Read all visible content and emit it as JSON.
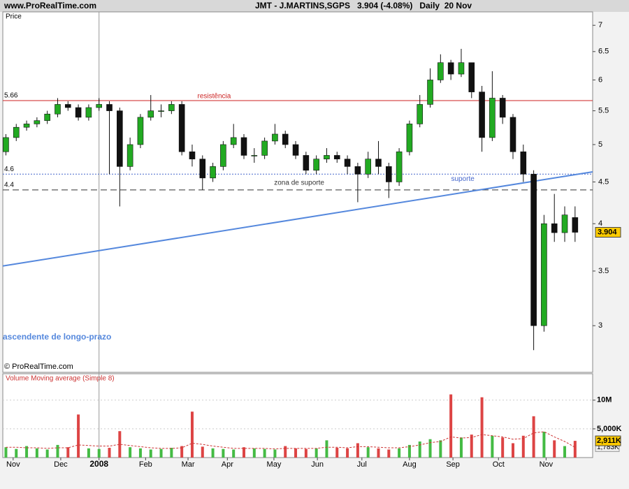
{
  "site": "www.ProRealTime.com",
  "copyright": "© ProRealTime.com",
  "chart_data": [
    {
      "type": "candlestick",
      "title": "JMT - J.MARTINS,SGPS   3.904 (-4.08%)   Daily  20 Nov",
      "axis_label": "Price",
      "log_scale": true,
      "up_color": "#22aa22",
      "down_color": "#111111",
      "ylim": [
        2.63,
        7.27
      ],
      "yticks": [
        3,
        3.5,
        4,
        4.5,
        5,
        5.5,
        6,
        6.5,
        7
      ],
      "xlim": [
        -0.3,
        56.7
      ],
      "xticks": [
        {
          "value": 0.7,
          "label": "Nov"
        },
        {
          "value": 5.3,
          "label": "Dec"
        },
        {
          "value": 9,
          "label": "2008"
        },
        {
          "value": 13.5,
          "label": "Feb"
        },
        {
          "value": 17.6,
          "label": "Mar"
        },
        {
          "value": 21.4,
          "label": "Apr"
        },
        {
          "value": 25.9,
          "label": "May"
        },
        {
          "value": 30.1,
          "label": "Jun"
        },
        {
          "value": 34.4,
          "label": "Jul"
        },
        {
          "value": 39,
          "label": "Aug"
        },
        {
          "value": 43.2,
          "label": "Sep"
        },
        {
          "value": 47.6,
          "label": "Oct"
        },
        {
          "value": 52.2,
          "label": "Nov"
        }
      ],
      "open": [
        4.9,
        5.1,
        5.25,
        5.3,
        5.35,
        5.45,
        5.6,
        5.55,
        5.4,
        5.55,
        5.6,
        5.5,
        4.7,
        5.0,
        5.4,
        5.5,
        5.5,
        5.6,
        4.9,
        4.8,
        4.55,
        4.7,
        5.0,
        5.1,
        4.85,
        4.85,
        5.05,
        5.15,
        5.0,
        4.85,
        4.65,
        4.8,
        4.85,
        4.8,
        4.7,
        4.6,
        4.8,
        4.7,
        4.5,
        4.9,
        5.3,
        5.6,
        6.0,
        6.3,
        6.1,
        6.3,
        5.8,
        5.1,
        5.7,
        5.4,
        4.9,
        4.6,
        3.0,
        4.0,
        3.9,
        4.07
      ],
      "high": [
        5.15,
        5.3,
        5.35,
        5.4,
        5.5,
        5.7,
        5.65,
        5.6,
        5.6,
        5.7,
        5.65,
        5.55,
        5.1,
        5.45,
        5.75,
        5.6,
        5.65,
        5.65,
        5.0,
        4.85,
        4.75,
        5.05,
        5.3,
        5.15,
        4.95,
        5.1,
        5.3,
        5.2,
        5.05,
        4.9,
        4.85,
        4.95,
        4.9,
        4.85,
        4.75,
        4.9,
        5.05,
        4.75,
        4.95,
        5.35,
        5.75,
        6.2,
        6.45,
        6.35,
        6.55,
        6.3,
        5.9,
        6.15,
        5.75,
        5.45,
        5.0,
        4.65,
        4.1,
        4.35,
        4.2,
        4.2
      ],
      "low": [
        4.85,
        5.05,
        5.2,
        5.25,
        5.3,
        5.4,
        5.5,
        5.35,
        5.35,
        5.5,
        4.6,
        4.2,
        4.65,
        4.95,
        5.35,
        5.4,
        5.45,
        4.85,
        4.7,
        4.4,
        4.5,
        4.65,
        4.95,
        4.8,
        4.75,
        4.8,
        5.0,
        4.95,
        4.8,
        4.6,
        4.6,
        4.75,
        4.75,
        4.6,
        4.25,
        4.55,
        4.6,
        4.3,
        4.45,
        4.85,
        5.25,
        5.55,
        5.95,
        6.0,
        6.05,
        5.7,
        4.9,
        5.05,
        5.3,
        4.8,
        4.5,
        2.8,
        2.95,
        3.8,
        3.8,
        3.8
      ],
      "close": [
        5.1,
        5.25,
        5.3,
        5.35,
        5.45,
        5.6,
        5.55,
        5.4,
        5.55,
        5.6,
        5.5,
        4.7,
        5.0,
        5.4,
        5.5,
        5.5,
        5.6,
        4.9,
        4.8,
        4.55,
        4.7,
        5.0,
        5.1,
        4.85,
        4.85,
        5.05,
        5.15,
        5.0,
        4.85,
        4.65,
        4.8,
        4.85,
        4.8,
        4.7,
        4.6,
        4.8,
        4.7,
        4.5,
        4.9,
        5.3,
        5.6,
        6.0,
        6.3,
        6.1,
        6.3,
        5.8,
        5.1,
        5.7,
        5.4,
        4.9,
        4.6,
        3.0,
        4.0,
        3.9,
        4.1,
        3.904
      ],
      "levels": [
        {
          "value": 5.66,
          "label": "5.66",
          "name": "resistência",
          "color": "#cc2222",
          "style": "solid",
          "name_at": 0.33
        },
        {
          "value": 4.6,
          "label": "4.6",
          "name": "suporte",
          "color": "#4466cc",
          "style": "dotted",
          "name_at": 0.76
        },
        {
          "value": 4.4,
          "label": "4.4",
          "name": "zona de suporte",
          "color": "#333333",
          "style": "dashed",
          "name_at": 0.46
        }
      ],
      "trendline": {
        "name": "ascendente de longo-prazo",
        "color": "#5588dd",
        "values": [
          3.55,
          4.63
        ]
      }
    },
    {
      "type": "bar",
      "title": "Volume Moving average (Simple 8)",
      "ylim": [
        0,
        14.6
      ],
      "yticks": [
        {
          "value": 10,
          "label": "10M"
        },
        {
          "value": 5,
          "label": "5,000K"
        }
      ],
      "values": [
        1.8,
        1.5,
        2.0,
        1.6,
        1.4,
        2.2,
        1.8,
        7.5,
        1.6,
        1.5,
        1.7,
        4.6,
        1.8,
        1.6,
        1.4,
        1.5,
        1.7,
        2.0,
        8.0,
        1.9,
        1.6,
        1.5,
        1.4,
        1.8,
        1.6,
        1.5,
        1.4,
        2.0,
        1.6,
        1.5,
        1.6,
        3.0,
        1.7,
        1.6,
        2.5,
        1.8,
        1.6,
        1.4,
        1.6,
        2.2,
        2.8,
        3.2,
        3.0,
        11.0,
        3.5,
        4.0,
        10.5,
        3.8,
        3.5,
        2.5,
        3.8,
        7.2,
        4.5,
        3.0,
        2.0,
        2.911
      ],
      "value_labels": {
        "55": "2,911K"
      },
      "average": {
        "color": "#cc3333",
        "values": [
          1.8,
          1.8,
          1.7,
          1.7,
          1.6,
          1.7,
          1.7,
          2.2,
          2.1,
          2.0,
          2.0,
          2.3,
          2.1,
          1.9,
          1.7,
          1.6,
          1.6,
          1.7,
          2.5,
          2.3,
          2.0,
          1.8,
          1.6,
          1.6,
          1.6,
          1.6,
          1.5,
          1.6,
          1.6,
          1.6,
          1.6,
          1.8,
          1.8,
          1.7,
          1.9,
          1.9,
          1.8,
          1.7,
          1.7,
          1.9,
          2.2,
          2.6,
          2.8,
          3.6,
          3.4,
          3.5,
          4.0,
          3.8,
          3.6,
          3.2,
          3.3,
          4.3,
          4.5,
          3.6,
          2.8,
          1.783
        ],
        "value_labels": {
          "55": "1,783K"
        }
      },
      "up_color": "#44bb44",
      "down_color": "#dd4444"
    }
  ]
}
